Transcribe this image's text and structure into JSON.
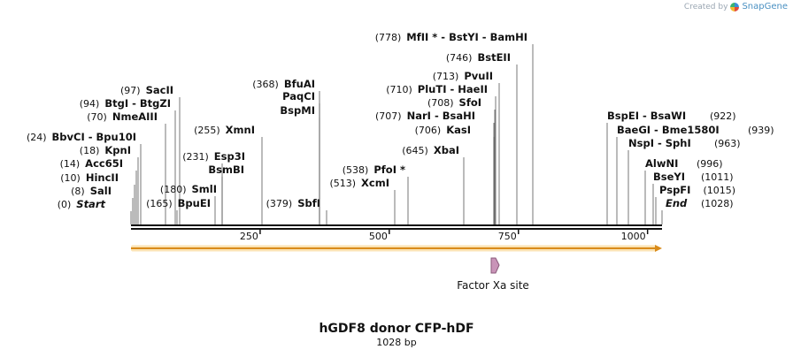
{
  "credit": {
    "text": "Created by",
    "brand": "SnapGene"
  },
  "map": {
    "title": "hGDF8 donor CFP-hDF",
    "length_label": "1028 bp",
    "total_bp": 1028,
    "ticks": [
      {
        "bp": 250,
        "label": "250"
      },
      {
        "bp": 500,
        "label": "500"
      },
      {
        "bp": 750,
        "label": "750"
      },
      {
        "bp": 1000,
        "label": "1000"
      }
    ],
    "features": [
      {
        "name": "Factor Xa site",
        "start": 700,
        "end": 712,
        "color": "#c994b8"
      }
    ],
    "orf": {
      "start": 0,
      "end": 1028,
      "color": "#f0b24a"
    },
    "left_sites": [
      {
        "pos_text": "(0)",
        "names": [
          "Start"
        ],
        "pos": 0,
        "italic": true
      },
      {
        "pos_text": "(8)",
        "names": [
          "SalI"
        ],
        "pos": 8
      },
      {
        "pos_text": "(10)",
        "names": [
          "HincII"
        ],
        "pos": 10
      },
      {
        "pos_text": "(14)",
        "names": [
          "Acc65I"
        ],
        "pos": 14
      },
      {
        "pos_text": "(18)",
        "names": [
          "KpnI"
        ],
        "pos": 18
      },
      {
        "pos_text": "(24)",
        "names": [
          "BbvCI",
          "Bpu10I"
        ],
        "pos": 24
      },
      {
        "pos_text": "(70)",
        "names": [
          "NmeAIII"
        ],
        "pos": 70
      },
      {
        "pos_text": "(94)",
        "names": [
          "BtgI",
          "BtgZI"
        ],
        "pos": 94
      },
      {
        "pos_text": "(97)",
        "names": [
          "SacII"
        ],
        "pos": 97
      },
      {
        "pos_text": "(165)",
        "names": [
          "BpuEI"
        ],
        "pos": 165,
        "pos_after": false
      },
      {
        "pos_text": "(180)",
        "names": [
          "SmlI"
        ],
        "pos": 180
      },
      {
        "pos_text": "(231)",
        "names": [
          "Esp3I"
        ],
        "pos": 231
      },
      {
        "pos_text": "",
        "names": [
          "BsmBI"
        ],
        "pos": 231
      },
      {
        "pos_text": "(255)",
        "names": [
          "XmnI"
        ],
        "pos": 255
      },
      {
        "pos_text": "(379)",
        "names": [
          "SbfI"
        ],
        "pos": 379
      },
      {
        "pos_text": "(368)",
        "names": [
          "BfuAI"
        ],
        "pos": 368
      },
      {
        "pos_text": "",
        "names": [
          "PaqCI"
        ],
        "pos": 368
      },
      {
        "pos_text": "",
        "names": [
          "BspMI"
        ],
        "pos": 368
      },
      {
        "pos_text": "(513)",
        "names": [
          "XcmI"
        ],
        "pos": 513
      },
      {
        "pos_text": "(538)",
        "names": [
          "PfoI *"
        ],
        "pos": 538
      },
      {
        "pos_text": "(645)",
        "names": [
          "XbaI"
        ],
        "pos": 645
      },
      {
        "pos_text": "(706)",
        "names": [
          "KasI"
        ],
        "pos": 706
      },
      {
        "pos_text": "(707)",
        "names": [
          "NarI",
          "BsaHI"
        ],
        "pos": 707
      },
      {
        "pos_text": "(708)",
        "names": [
          "SfoI"
        ],
        "pos": 708
      },
      {
        "pos_text": "(710)",
        "names": [
          "PluTI",
          "HaeII"
        ],
        "pos": 710
      },
      {
        "pos_text": "(713)",
        "names": [
          "PvuII"
        ],
        "pos": 713
      },
      {
        "pos_text": "(746)",
        "names": [
          "BstEII"
        ],
        "pos": 746
      },
      {
        "pos_text": "(778)",
        "names": [
          "MfII *",
          "BstYI",
          "BamHI"
        ],
        "pos": 778
      }
    ],
    "right_sites": [
      {
        "pos_text": "(922)",
        "names": [
          "BspEI",
          "BsaWI"
        ],
        "pos": 922
      },
      {
        "pos_text": "(939)",
        "names": [
          "BaeGI",
          "Bme1580I"
        ],
        "pos": 939
      },
      {
        "pos_text": "(963)",
        "names": [
          "NspI",
          "SphI"
        ],
        "pos": 963
      },
      {
        "pos_text": "(996)",
        "names": [
          "AlwNI"
        ],
        "pos": 996
      },
      {
        "pos_text": "(1011)",
        "names": [
          "BseYI"
        ],
        "pos": 1011
      },
      {
        "pos_text": "(1015)",
        "names": [
          "PspFI"
        ],
        "pos": 1015
      },
      {
        "pos_text": "(1028)",
        "names": [
          "End"
        ],
        "pos": 1028,
        "italic": true
      }
    ]
  }
}
